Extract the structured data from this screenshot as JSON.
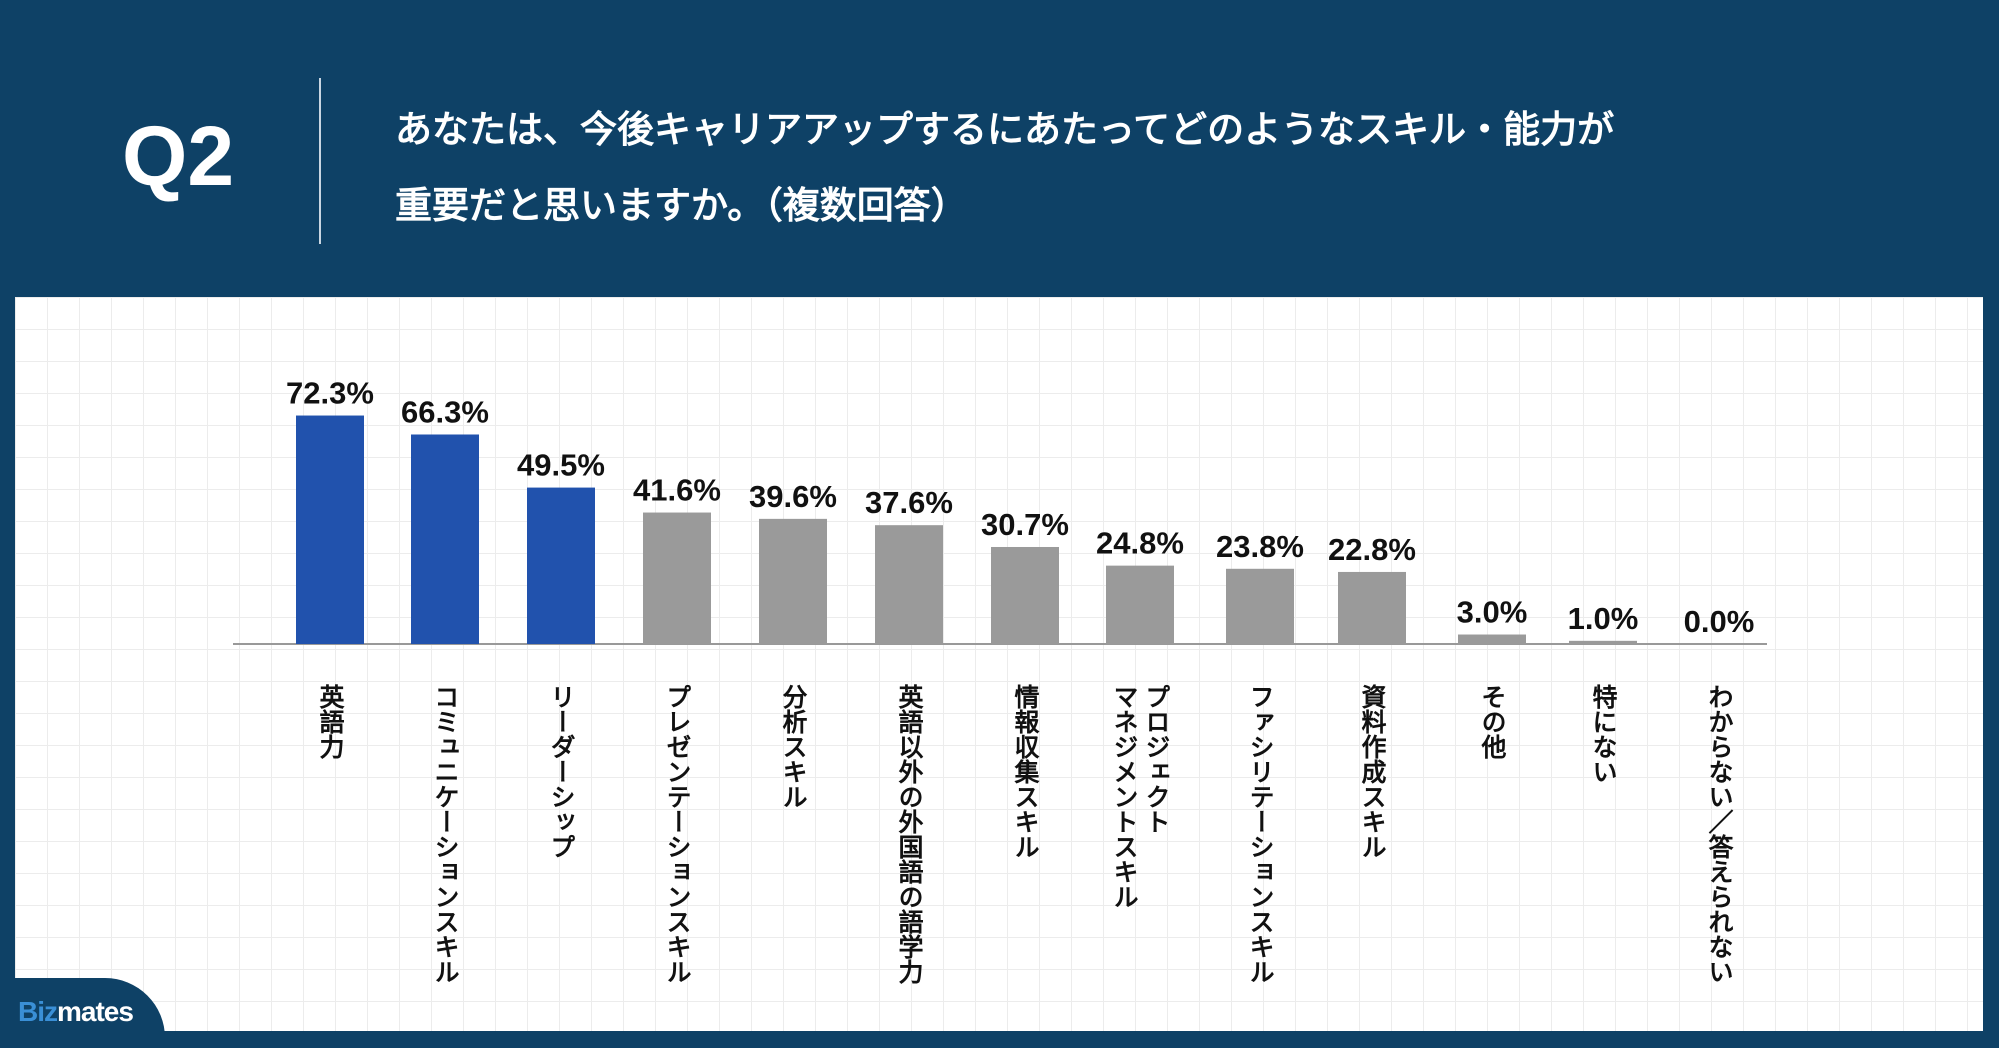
{
  "header": {
    "q_label": "Q2",
    "question_line1": "あなたは、今後キャリアアップするにあたってどのようなスキル・能力が",
    "question_line2": "重要だと思いますか。（複数回答）"
  },
  "logo": {
    "text_part1": "Biz",
    "text_part2": "mates"
  },
  "chart_data": {
    "type": "bar",
    "categories": [
      "英語力",
      "コミュニケーションスキル",
      "リーダーシップ",
      "プレゼンテーションスキル",
      "分析スキル",
      "英語以外の外国語の語学力",
      "情報収集スキル",
      "プロジェクト\nマネジメントスキル",
      "ファシリテーションスキル",
      "資料作成スキル",
      "その他",
      "特にない",
      "わからない／答えられない"
    ],
    "values": [
      72.3,
      66.3,
      49.5,
      41.6,
      39.6,
      37.6,
      30.7,
      24.8,
      23.8,
      22.8,
      3.0,
      1.0,
      0.0
    ],
    "labels": [
      "72.3%",
      "66.3%",
      "49.5%",
      "41.6%",
      "39.6%",
      "37.6%",
      "30.7%",
      "24.8%",
      "23.8%",
      "22.8%",
      "3.0%",
      "1.0%",
      "0.0%"
    ],
    "highlight_count": 3,
    "colors": {
      "highlight": "#2152ad",
      "default": "#9a9a9a",
      "axis": "#999999"
    },
    "unit": "%",
    "grid": false
  }
}
